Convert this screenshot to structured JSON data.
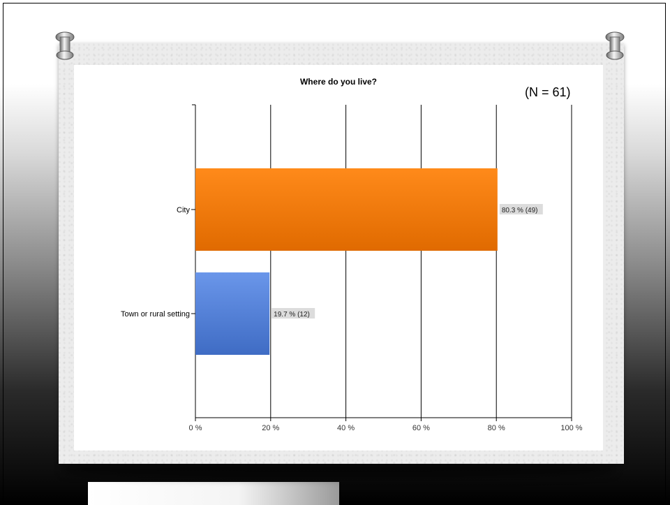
{
  "slide": {
    "sample_size_label": "(N = 61)"
  },
  "chart_data": {
    "type": "bar",
    "orientation": "horizontal",
    "title": "Where do you live?",
    "categories": [
      "City",
      "Town or rural setting"
    ],
    "values": [
      80.3,
      19.7
    ],
    "data_labels": [
      "80.3 % (49)",
      "19.7 % (12)"
    ],
    "bar_colors": [
      "#f07d00",
      "#4a78d0"
    ],
    "xlim": [
      0,
      100
    ],
    "x_ticks": [
      0,
      20,
      40,
      60,
      80,
      100
    ],
    "x_tick_labels": [
      "0 %",
      "20 %",
      "40 %",
      "60 %",
      "80 %",
      "100 %"
    ],
    "xlabel": "",
    "ylabel": "",
    "grid": true
  }
}
